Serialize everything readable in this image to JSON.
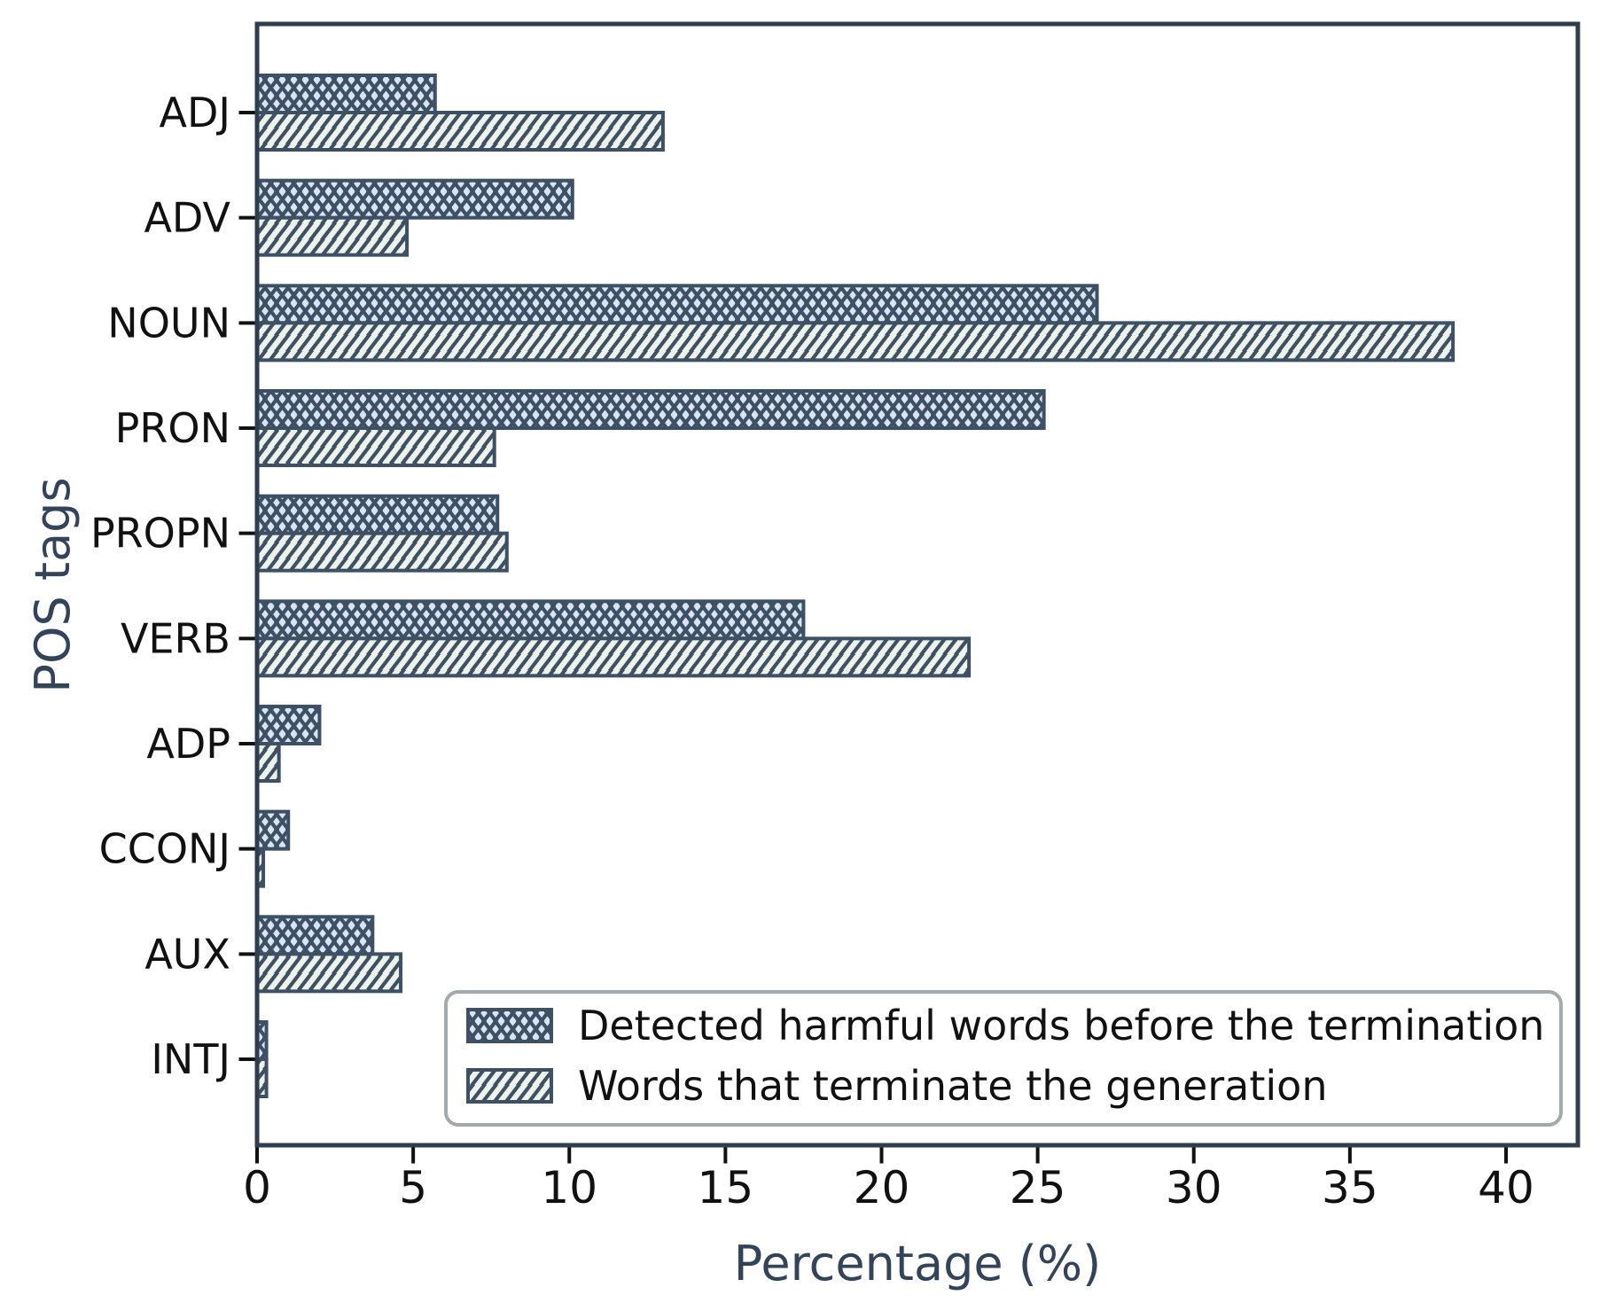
{
  "figure": {
    "type_label": "grouped horizontal bar chart"
  },
  "chart_data": {
    "type": "bar",
    "orientation": "horizontal",
    "title": "",
    "xlabel": "Percentage (%)",
    "ylabel": "POS tags",
    "xlim": [
      0,
      42.3
    ],
    "xticks": [
      0,
      5,
      10,
      15,
      20,
      25,
      30,
      35,
      40
    ],
    "grid": false,
    "legend_position": "lower right",
    "categories": [
      "ADJ",
      "ADV",
      "NOUN",
      "PRON",
      "PROPN",
      "VERB",
      "ADP",
      "CCONJ",
      "AUX",
      "INTJ"
    ],
    "series": [
      {
        "name": "Detected harmful words before the termination",
        "hatch": "xx",
        "fill": "#d9e5f7",
        "edge": "#3e5164",
        "values": [
          5.7,
          10.1,
          26.9,
          25.2,
          7.7,
          17.5,
          2.0,
          1.0,
          3.7,
          0.3
        ]
      },
      {
        "name": "Words that terminate the generation",
        "hatch": "//",
        "fill": "#edf2ea",
        "edge": "#3e5164",
        "values": [
          13.0,
          4.8,
          38.3,
          7.6,
          8.0,
          22.8,
          0.7,
          0.2,
          4.6,
          0.3
        ]
      }
    ]
  },
  "colors": {
    "spine": "#2e3e50",
    "bar_edge": "#3e5164",
    "tick_label": "#111111",
    "axis_title": "#32435a",
    "legend_border": "#a3a9ad",
    "legend_bg": "#ffffff",
    "series1_fill": "#d9e5f7",
    "series2_fill": "#edf2ea"
  }
}
